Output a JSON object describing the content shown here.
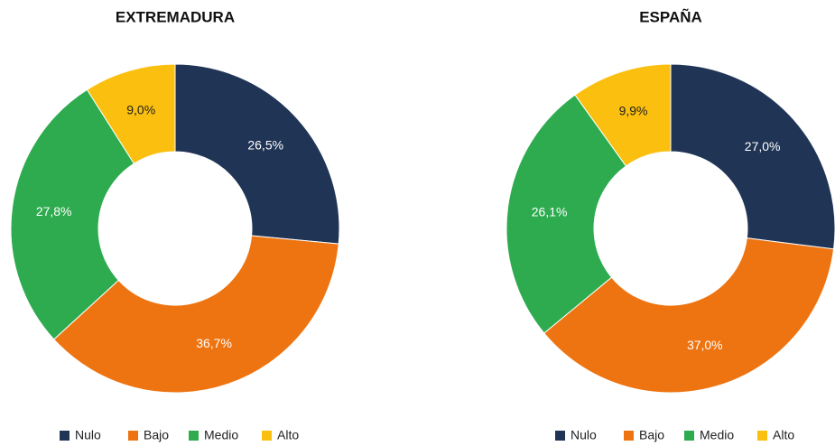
{
  "chart_data": [
    {
      "type": "donut",
      "title": "EXTREMADURA",
      "categories": [
        "Nulo",
        "Bajo",
        "Medio",
        "Alto"
      ],
      "values": [
        26.5,
        36.7,
        27.8,
        9.0
      ],
      "value_labels": [
        "26,5%",
        "36,7%",
        "27,8%",
        "9,0%"
      ],
      "colors": [
        "#203556",
        "#ee7411",
        "#2eab4f",
        "#fbbf0f"
      ]
    },
    {
      "type": "donut",
      "title": "ESPAÑA",
      "categories": [
        "Nulo",
        "Bajo",
        "Medio",
        "Alto"
      ],
      "values": [
        27.0,
        37.0,
        26.1,
        9.9
      ],
      "value_labels": [
        "27,0%",
        "37,0%",
        "26,1%",
        "9,9%"
      ],
      "colors": [
        "#203556",
        "#ee7411",
        "#2eab4f",
        "#fbbf0f"
      ]
    }
  ]
}
